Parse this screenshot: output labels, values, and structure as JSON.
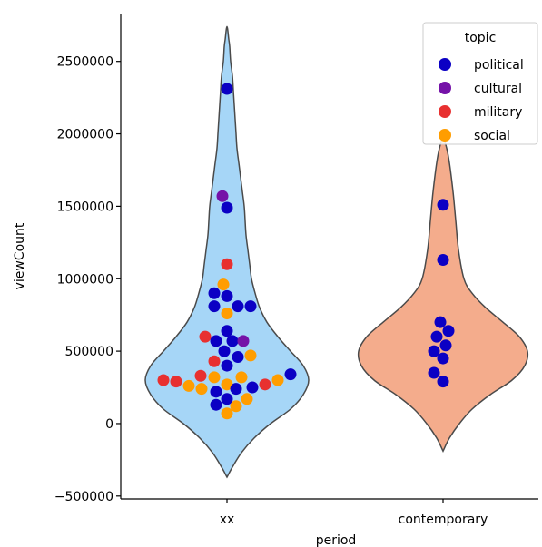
{
  "chart_data": {
    "type": "violin-swarm",
    "xlabel": "period",
    "ylabel": "viewCount",
    "categories": [
      "xx",
      "contemporary"
    ],
    "ylim": [
      -520000,
      2830000
    ],
    "yticks": [
      -500000,
      0,
      500000,
      1000000,
      1500000,
      2000000,
      2500000
    ],
    "ytick_labels": [
      "−500000",
      "0",
      "500000",
      "1000000",
      "1500000",
      "2000000",
      "2500000"
    ],
    "grid": false,
    "legend": {
      "title": "topic",
      "placement": "top-right",
      "entries": [
        {
          "name": "political",
          "color": "#0b00c4"
        },
        {
          "name": "cultural",
          "color": "#7512a8"
        },
        {
          "name": "military",
          "color": "#e83030"
        },
        {
          "name": "social",
          "color": "#ff9d00"
        }
      ]
    },
    "violins": [
      {
        "category": "xx",
        "fill": "#a6d6f7",
        "profile": [
          [
            -370000,
            0
          ],
          [
            -300000,
            6
          ],
          [
            -200000,
            16
          ],
          [
            -100000,
            30
          ],
          [
            0,
            48
          ],
          [
            100000,
            70
          ],
          [
            200000,
            84
          ],
          [
            300000,
            90
          ],
          [
            400000,
            84
          ],
          [
            500000,
            70
          ],
          [
            600000,
            56
          ],
          [
            700000,
            44
          ],
          [
            800000,
            36
          ],
          [
            900000,
            31
          ],
          [
            1000000,
            27
          ],
          [
            1100000,
            25
          ],
          [
            1200000,
            23
          ],
          [
            1300000,
            21
          ],
          [
            1400000,
            20
          ],
          [
            1500000,
            19
          ],
          [
            1600000,
            17
          ],
          [
            1700000,
            15
          ],
          [
            1800000,
            13
          ],
          [
            1900000,
            11
          ],
          [
            2000000,
            10
          ],
          [
            2100000,
            9
          ],
          [
            2200000,
            8
          ],
          [
            2300000,
            7
          ],
          [
            2400000,
            6
          ],
          [
            2500000,
            4
          ],
          [
            2600000,
            3
          ],
          [
            2650000,
            2
          ],
          [
            2740000,
            0
          ]
        ]
      },
      {
        "category": "contemporary",
        "fill": "#f4ac8c",
        "profile": [
          [
            -190000,
            0
          ],
          [
            -100000,
            7
          ],
          [
            0,
            18
          ],
          [
            100000,
            32
          ],
          [
            200000,
            52
          ],
          [
            300000,
            76
          ],
          [
            400000,
            90
          ],
          [
            500000,
            93
          ],
          [
            600000,
            84
          ],
          [
            700000,
            66
          ],
          [
            800000,
            47
          ],
          [
            900000,
            32
          ],
          [
            1000000,
            23
          ],
          [
            1200000,
            17
          ],
          [
            1400000,
            14
          ],
          [
            1600000,
            11
          ],
          [
            1800000,
            7
          ],
          [
            1900000,
            4
          ],
          [
            1970000,
            0
          ]
        ]
      }
    ],
    "points": [
      {
        "category": "xx",
        "topic": "political",
        "y": 2310000,
        "offset": 0
      },
      {
        "category": "xx",
        "topic": "cultural",
        "y": 1570000,
        "offset": -5
      },
      {
        "category": "xx",
        "topic": "political",
        "y": 1490000,
        "offset": 0
      },
      {
        "category": "xx",
        "topic": "military",
        "y": 1100000,
        "offset": 0
      },
      {
        "category": "xx",
        "topic": "social",
        "y": 960000,
        "offset": -4
      },
      {
        "category": "xx",
        "topic": "political",
        "y": 900000,
        "offset": -14
      },
      {
        "category": "xx",
        "topic": "political",
        "y": 880000,
        "offset": 0
      },
      {
        "category": "xx",
        "topic": "political",
        "y": 810000,
        "offset": -14
      },
      {
        "category": "xx",
        "topic": "political",
        "y": 810000,
        "offset": 12
      },
      {
        "category": "xx",
        "topic": "political",
        "y": 810000,
        "offset": 26
      },
      {
        "category": "xx",
        "topic": "social",
        "y": 760000,
        "offset": 0
      },
      {
        "category": "xx",
        "topic": "political",
        "y": 640000,
        "offset": 0
      },
      {
        "category": "xx",
        "topic": "military",
        "y": 600000,
        "offset": -24
      },
      {
        "category": "xx",
        "topic": "political",
        "y": 570000,
        "offset": -12
      },
      {
        "category": "xx",
        "topic": "political",
        "y": 570000,
        "offset": 6
      },
      {
        "category": "xx",
        "topic": "cultural",
        "y": 570000,
        "offset": 18
      },
      {
        "category": "xx",
        "topic": "political",
        "y": 500000,
        "offset": -3
      },
      {
        "category": "xx",
        "topic": "social",
        "y": 470000,
        "offset": 26
      },
      {
        "category": "xx",
        "topic": "political",
        "y": 460000,
        "offset": 12
      },
      {
        "category": "xx",
        "topic": "military",
        "y": 430000,
        "offset": -14
      },
      {
        "category": "xx",
        "topic": "political",
        "y": 400000,
        "offset": 0
      },
      {
        "category": "xx",
        "topic": "political",
        "y": 340000,
        "offset": 70
      },
      {
        "category": "xx",
        "topic": "military",
        "y": 330000,
        "offset": -29
      },
      {
        "category": "xx",
        "topic": "social",
        "y": 320000,
        "offset": -14
      },
      {
        "category": "xx",
        "topic": "social",
        "y": 320000,
        "offset": 16
      },
      {
        "category": "xx",
        "topic": "military",
        "y": 300000,
        "offset": -70
      },
      {
        "category": "xx",
        "topic": "social",
        "y": 300000,
        "offset": 56
      },
      {
        "category": "xx",
        "topic": "military",
        "y": 290000,
        "offset": -56
      },
      {
        "category": "xx",
        "topic": "social",
        "y": 270000,
        "offset": 0
      },
      {
        "category": "xx",
        "topic": "military",
        "y": 270000,
        "offset": 42
      },
      {
        "category": "xx",
        "topic": "social",
        "y": 260000,
        "offset": -42
      },
      {
        "category": "xx",
        "topic": "political",
        "y": 250000,
        "offset": 28
      },
      {
        "category": "xx",
        "topic": "social",
        "y": 240000,
        "offset": -28
      },
      {
        "category": "xx",
        "topic": "political",
        "y": 240000,
        "offset": 10
      },
      {
        "category": "xx",
        "topic": "political",
        "y": 220000,
        "offset": -12
      },
      {
        "category": "xx",
        "topic": "political",
        "y": 170000,
        "offset": 0
      },
      {
        "category": "xx",
        "topic": "social",
        "y": 170000,
        "offset": 22
      },
      {
        "category": "xx",
        "topic": "political",
        "y": 130000,
        "offset": -12
      },
      {
        "category": "xx",
        "topic": "social",
        "y": 120000,
        "offset": 10
      },
      {
        "category": "xx",
        "topic": "social",
        "y": 70000,
        "offset": 0
      },
      {
        "category": "contemporary",
        "topic": "political",
        "y": 1510000,
        "offset": 0
      },
      {
        "category": "contemporary",
        "topic": "political",
        "y": 1130000,
        "offset": 0
      },
      {
        "category": "contemporary",
        "topic": "political",
        "y": 700000,
        "offset": -3
      },
      {
        "category": "contemporary",
        "topic": "political",
        "y": 640000,
        "offset": 6
      },
      {
        "category": "contemporary",
        "topic": "political",
        "y": 600000,
        "offset": -7
      },
      {
        "category": "contemporary",
        "topic": "political",
        "y": 540000,
        "offset": 3
      },
      {
        "category": "contemporary",
        "topic": "political",
        "y": 500000,
        "offset": -10
      },
      {
        "category": "contemporary",
        "topic": "political",
        "y": 450000,
        "offset": 0
      },
      {
        "category": "contemporary",
        "topic": "political",
        "y": 350000,
        "offset": -10
      },
      {
        "category": "contemporary",
        "topic": "political",
        "y": 290000,
        "offset": 0
      }
    ]
  }
}
